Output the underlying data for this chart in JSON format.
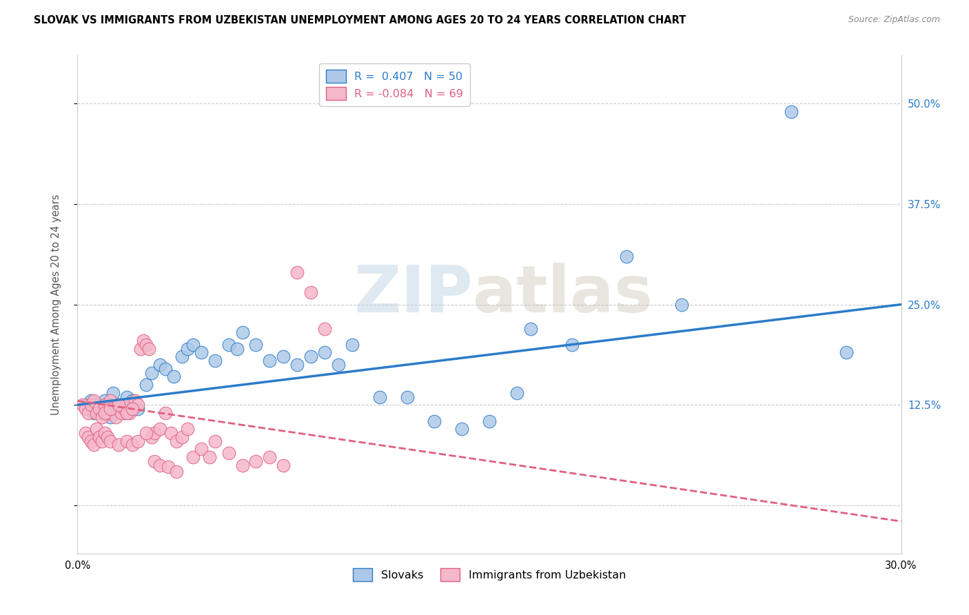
{
  "title": "SLOVAK VS IMMIGRANTS FROM UZBEKISTAN UNEMPLOYMENT AMONG AGES 20 TO 24 YEARS CORRELATION CHART",
  "source": "Source: ZipAtlas.com",
  "ylabel": "Unemployment Among Ages 20 to 24 years",
  "xlabel": "",
  "xlim": [
    0.0,
    0.3
  ],
  "ylim": [
    -0.06,
    0.56
  ],
  "yticks": [
    0.0,
    0.125,
    0.25,
    0.375,
    0.5
  ],
  "ytick_labels_right": [
    "",
    "12.5%",
    "25.0%",
    "37.5%",
    "50.0%"
  ],
  "xticks": [
    0.0,
    0.05,
    0.1,
    0.15,
    0.2,
    0.25,
    0.3
  ],
  "xtick_labels": [
    "0.0%",
    "",
    "",
    "",
    "",
    "",
    "30.0%"
  ],
  "blue_R": 0.407,
  "blue_N": 50,
  "pink_R": -0.084,
  "pink_N": 69,
  "blue_color": "#aec9e8",
  "blue_line_color": "#2b7bca",
  "pink_color": "#f5b8cb",
  "pink_line_color": "#e06080",
  "watermark_zip": "ZIP",
  "watermark_atlas": "atlas",
  "title_fontsize": 10.5,
  "blue_scatter_x": [
    0.003,
    0.004,
    0.005,
    0.006,
    0.007,
    0.008,
    0.009,
    0.01,
    0.011,
    0.012,
    0.013,
    0.015,
    0.016,
    0.017,
    0.018,
    0.02,
    0.022,
    0.025,
    0.027,
    0.03,
    0.032,
    0.035,
    0.038,
    0.04,
    0.042,
    0.045,
    0.05,
    0.055,
    0.058,
    0.06,
    0.065,
    0.07,
    0.075,
    0.08,
    0.085,
    0.09,
    0.095,
    0.1,
    0.11,
    0.12,
    0.13,
    0.14,
    0.15,
    0.16,
    0.18,
    0.2,
    0.22,
    0.26,
    0.165,
    0.28
  ],
  "blue_scatter_y": [
    0.125,
    0.12,
    0.13,
    0.115,
    0.125,
    0.12,
    0.115,
    0.13,
    0.125,
    0.11,
    0.14,
    0.12,
    0.125,
    0.115,
    0.135,
    0.13,
    0.12,
    0.15,
    0.165,
    0.175,
    0.17,
    0.16,
    0.185,
    0.195,
    0.2,
    0.19,
    0.18,
    0.2,
    0.195,
    0.215,
    0.2,
    0.18,
    0.185,
    0.175,
    0.185,
    0.19,
    0.175,
    0.2,
    0.135,
    0.135,
    0.105,
    0.095,
    0.105,
    0.14,
    0.2,
    0.31,
    0.25,
    0.49,
    0.22,
    0.19
  ],
  "pink_scatter_x": [
    0.002,
    0.003,
    0.004,
    0.005,
    0.006,
    0.007,
    0.008,
    0.009,
    0.01,
    0.011,
    0.012,
    0.013,
    0.014,
    0.015,
    0.016,
    0.017,
    0.018,
    0.019,
    0.02,
    0.021,
    0.022,
    0.023,
    0.024,
    0.025,
    0.026,
    0.027,
    0.028,
    0.03,
    0.032,
    0.034,
    0.036,
    0.038,
    0.04,
    0.042,
    0.045,
    0.048,
    0.05,
    0.055,
    0.06,
    0.065,
    0.07,
    0.075,
    0.08,
    0.085,
    0.09,
    0.01,
    0.012,
    0.015,
    0.018,
    0.02,
    0.003,
    0.004,
    0.005,
    0.006,
    0.007,
    0.008,
    0.009,
    0.01,
    0.011,
    0.012,
    0.015,
    0.018,
    0.02,
    0.022,
    0.025,
    0.028,
    0.03,
    0.033,
    0.036
  ],
  "pink_scatter_y": [
    0.125,
    0.12,
    0.115,
    0.125,
    0.13,
    0.115,
    0.12,
    0.11,
    0.125,
    0.115,
    0.13,
    0.12,
    0.11,
    0.125,
    0.115,
    0.12,
    0.125,
    0.115,
    0.12,
    0.13,
    0.125,
    0.195,
    0.205,
    0.2,
    0.195,
    0.085,
    0.09,
    0.095,
    0.115,
    0.09,
    0.08,
    0.085,
    0.095,
    0.06,
    0.07,
    0.06,
    0.08,
    0.065,
    0.05,
    0.055,
    0.06,
    0.05,
    0.29,
    0.265,
    0.22,
    0.115,
    0.12,
    0.125,
    0.115,
    0.12,
    0.09,
    0.085,
    0.08,
    0.075,
    0.095,
    0.085,
    0.08,
    0.09,
    0.085,
    0.08,
    0.075,
    0.08,
    0.075,
    0.08,
    0.09,
    0.055,
    0.05,
    0.048,
    0.042
  ]
}
